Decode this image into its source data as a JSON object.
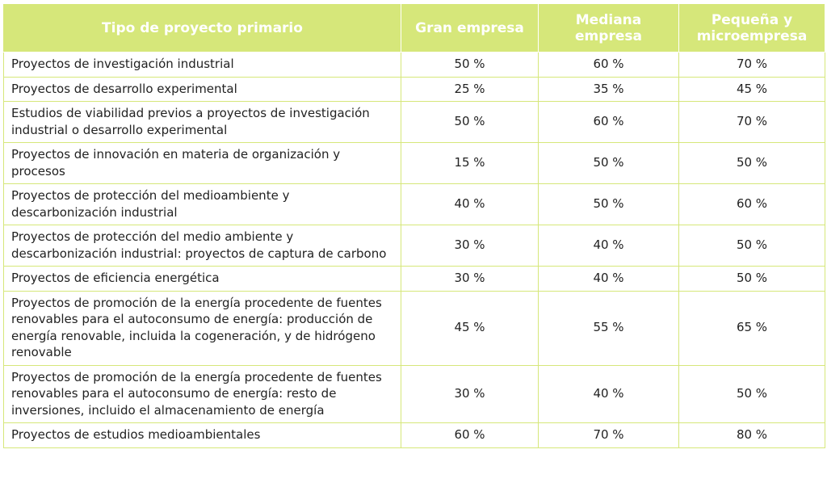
{
  "headers": [
    "Tipo de proyecto primario",
    "Gran empresa",
    "Mediana empresa",
    "Pequeña y microempresa"
  ],
  "rows": [
    {
      "label": "Proyectos de investigación industrial",
      "gran": "50 %",
      "mediana": "60 %",
      "pequena": "70 %"
    },
    {
      "label": "Proyectos de desarrollo experimental",
      "gran": "25 %",
      "mediana": "35 %",
      "pequena": "45 %"
    },
    {
      "label": "Estudios de viabilidad previos a proyectos de investigación industrial o desarrollo experimental",
      "gran": "50 %",
      "mediana": "60 %",
      "pequena": "70 %"
    },
    {
      "label": "Proyectos de innovación en materia de organización y procesos",
      "gran": "15 %",
      "mediana": "50 %",
      "pequena": "50 %"
    },
    {
      "label": "Proyectos de protección del medioambiente y descarbonización industrial",
      "gran": "40 %",
      "mediana": "50 %",
      "pequena": "60 %"
    },
    {
      "label": "Proyectos de protección del medio ambiente y descarbonización industrial: proyectos de captura de carbono",
      "gran": "30 %",
      "mediana": "40 %",
      "pequena": "50 %"
    },
    {
      "label": "Proyectos de eficiencia energética",
      "gran": "30 %",
      "mediana": "40 %",
      "pequena": "50 %"
    },
    {
      "label": "Proyectos de promoción de la energía procedente de fuentes renovables para el autoconsumo de energía: producción de energía renovable, incluida la cogeneración, y de hidrógeno renovable",
      "gran": "45 %",
      "mediana": "55 %",
      "pequena": "65 %"
    },
    {
      "label": "Proyectos de promoción de la energía procedente de fuentes renovables para el autoconsumo de energía: resto de inversiones, incluido el almacenamiento de energía",
      "gran": "30 %",
      "mediana": "40 %",
      "pequena": "50 %"
    },
    {
      "label": "Proyectos de estudios medioambientales",
      "gran": "60 %",
      "mediana": "70 %",
      "pequena": "80 %"
    }
  ],
  "colors": {
    "header_bg": "#d6e77a",
    "header_text": "#ffffff",
    "border": "#d6e77a",
    "body_text": "#222222"
  }
}
